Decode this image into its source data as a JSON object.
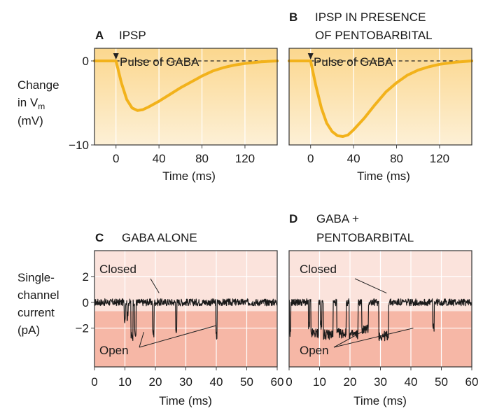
{
  "colors": {
    "ipsp_bg_top": "#fbd78e",
    "ipsp_bg_bottom": "#fdf0d6",
    "ipsp_curve": "#f2b21b",
    "channel_bg_top": "#fbe3dc",
    "channel_bg_bottom": "#f6b7a6",
    "grid": "#ffffff",
    "trace": "#1a1a1a"
  },
  "chart_data": [
    {
      "id": "A",
      "type": "line",
      "letter": "A",
      "title_lines": [
        "IPSP"
      ],
      "xlabel": "Time (ms)",
      "ylabel_lines": [
        "Change",
        "in  V",
        "(mV)"
      ],
      "ylabel_subscript": "m",
      "x_ticks": [
        0,
        40,
        80,
        120
      ],
      "y_ticks": [
        0,
        -10
      ],
      "y_tick_labels": [
        "0",
        "−10"
      ],
      "xlim": [
        -20,
        150
      ],
      "ylim": [
        -10,
        1.5
      ],
      "baseline": 0,
      "annotation": "Pulse of GABA",
      "arrow_x": 0,
      "series": [
        {
          "x": [
            -20,
            0,
            5,
            10,
            15,
            20,
            25,
            30,
            40,
            50,
            60,
            70,
            80,
            90,
            100,
            110,
            120,
            135,
            150
          ],
          "y": [
            0,
            0,
            -2.6,
            -4.6,
            -5.6,
            -5.9,
            -5.8,
            -5.5,
            -4.8,
            -4.0,
            -3.2,
            -2.5,
            -1.8,
            -1.2,
            -0.8,
            -0.5,
            -0.3,
            -0.1,
            0
          ]
        }
      ]
    },
    {
      "id": "B",
      "type": "line",
      "letter": "B",
      "title_lines": [
        "IPSP IN PRESENCE",
        "OF PENTOBARBITAL"
      ],
      "xlabel": "Time (ms)",
      "x_ticks": [
        0,
        40,
        80,
        120
      ],
      "y_ticks": [
        0,
        -10
      ],
      "xlim": [
        -20,
        150
      ],
      "ylim": [
        -10,
        1.5
      ],
      "baseline": 0,
      "annotation": "Pulse of GABA",
      "arrow_x": 0,
      "series": [
        {
          "x": [
            -20,
            0,
            5,
            10,
            15,
            20,
            25,
            30,
            35,
            40,
            50,
            60,
            70,
            80,
            90,
            100,
            110,
            120,
            135,
            150
          ],
          "y": [
            0,
            0,
            -3.0,
            -5.6,
            -7.4,
            -8.4,
            -8.9,
            -9.0,
            -8.8,
            -8.2,
            -6.8,
            -5.2,
            -3.7,
            -2.6,
            -1.7,
            -1.1,
            -0.7,
            -0.4,
            -0.15,
            0
          ]
        }
      ]
    },
    {
      "id": "C",
      "type": "line",
      "letter": "C",
      "title_lines": [
        "GABA ALONE"
      ],
      "xlabel": "Time (ms)",
      "ylabel_lines": [
        "Single-",
        "channel",
        "current",
        "(pA)"
      ],
      "x_ticks": [
        0,
        10,
        20,
        30,
        40,
        50,
        60
      ],
      "y_ticks": [
        2,
        0,
        -2
      ],
      "y_tick_labels": [
        "2",
        "0",
        "−2"
      ],
      "xlim": [
        0,
        60
      ],
      "ylim": [
        -5,
        4
      ],
      "closed_label": "Closed",
      "open_label": "Open",
      "openings": [
        [
          9.8,
          10.1,
          -1.2
        ],
        [
          10.7,
          11.0,
          -1.1
        ],
        [
          12.0,
          12.6,
          -2.6
        ],
        [
          13.2,
          13.6,
          -2.5
        ],
        [
          19.1,
          19.5,
          -2.4
        ],
        [
          26.7,
          27.0,
          -2.0
        ],
        [
          39.9,
          40.2,
          -2.6
        ]
      ]
    },
    {
      "id": "D",
      "type": "line",
      "letter": "D",
      "title_lines": [
        "GABA +",
        "PENTOBARBITAL"
      ],
      "xlabel": "Time (ms)",
      "x_ticks": [
        0,
        10,
        20,
        30,
        40,
        50,
        60
      ],
      "y_ticks": [
        2,
        0,
        -2
      ],
      "xlim": [
        0,
        60
      ],
      "ylim": [
        -5,
        4
      ],
      "closed_label": "Closed",
      "open_label": "Open",
      "openings": [
        [
          0.2,
          0.5,
          -2.5
        ],
        [
          6.4,
          6.7,
          -1.9
        ],
        [
          7.2,
          9.6,
          -2.4
        ],
        [
          10.3,
          10.7,
          -1.8
        ],
        [
          11.3,
          14.4,
          -2.5
        ],
        [
          15.7,
          18.7,
          -2.4
        ],
        [
          19.8,
          22.6,
          -2.5
        ],
        [
          23.9,
          26.0,
          -2.1
        ],
        [
          29.5,
          32.6,
          -2.6
        ],
        [
          47.2,
          47.6,
          -1.9
        ]
      ]
    }
  ]
}
